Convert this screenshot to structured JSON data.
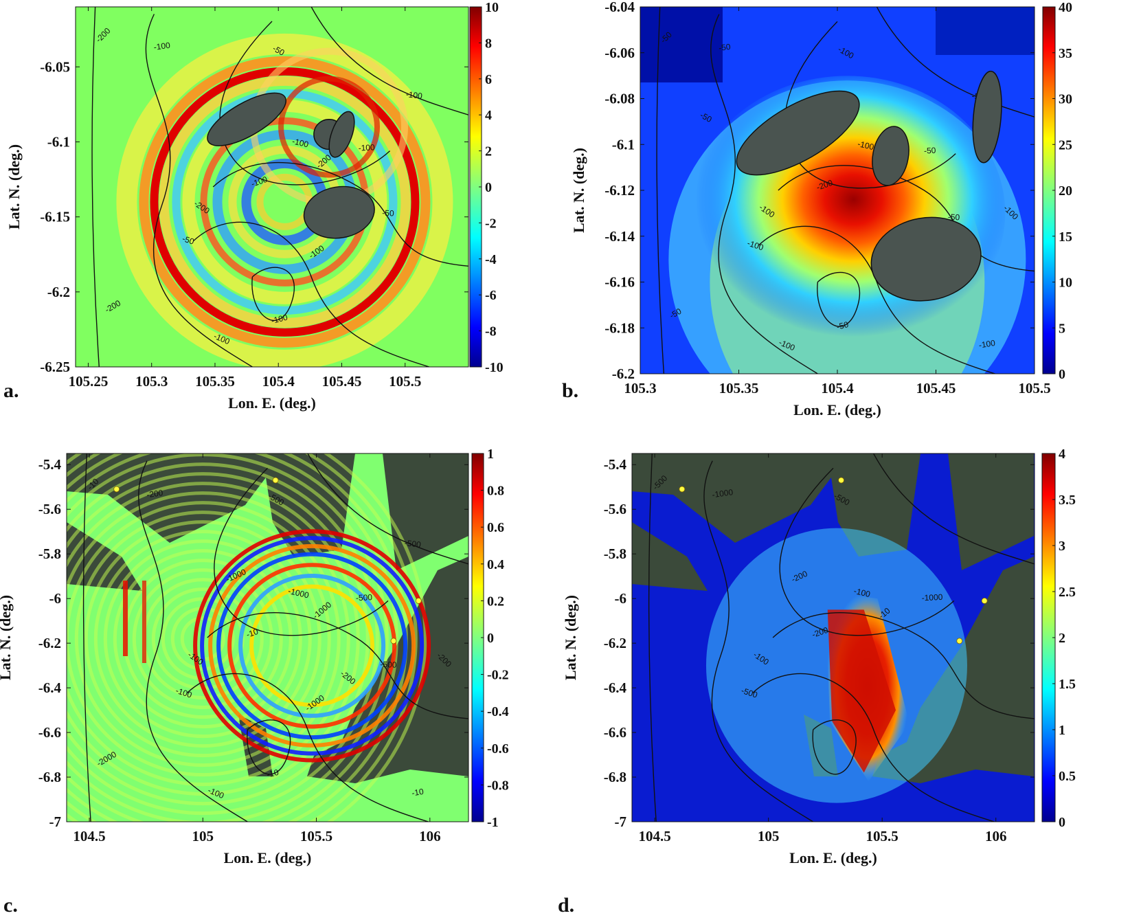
{
  "chart_data": [
    {
      "panel_label": "a.",
      "type": "heatmap",
      "xlabel": "Lon. E. (deg.)",
      "ylabel": "Lat. N. (deg.)",
      "xlim": [
        105.24,
        105.55
      ],
      "ylim": [
        -6.25,
        -6.01
      ],
      "xticks": [
        "105.25",
        "105.3",
        "105.35",
        "105.4",
        "105.45",
        "105.5"
      ],
      "yticks": [
        "-6.05",
        "-6.1",
        "-6.15",
        "-6.2",
        "-6.25"
      ],
      "colorbar": {
        "min": -10,
        "max": 10,
        "ticks": [
          "10",
          "8",
          "6",
          "4",
          "2",
          "0",
          "-2",
          "-4",
          "-6",
          "-8",
          "-10"
        ]
      },
      "contour_labels": [
        "-200",
        "-100",
        "-50",
        "-100",
        "-100",
        "-200",
        "-100",
        "-200",
        "-100",
        "-50",
        "-100",
        "-50",
        "-50",
        "-100",
        "-100",
        "-200",
        "-100"
      ],
      "islands": [
        {
          "cx": 105.375,
          "cy": -6.085,
          "rx": 0.035,
          "ry": 0.011,
          "rot": -30
        },
        {
          "cx": 105.44,
          "cy": -6.095,
          "rx": 0.012,
          "ry": 0.01,
          "rot": 0
        },
        {
          "cx": 105.45,
          "cy": -6.095,
          "rx": 0.008,
          "ry": 0.016,
          "rot": 20
        },
        {
          "cx": 105.448,
          "cy": -6.147,
          "rx": 0.028,
          "ry": 0.017,
          "rot": -10
        }
      ]
    },
    {
      "panel_label": "b.",
      "type": "heatmap",
      "xlabel": "Lon. E. (deg.)",
      "ylabel": "Lat. N. (deg.)",
      "xlim": [
        105.3,
        105.5
      ],
      "ylim": [
        -6.2,
        -6.04
      ],
      "xticks": [
        "105.3",
        "105.35",
        "105.4",
        "105.45",
        "105.5"
      ],
      "yticks": [
        "-6.04",
        "-6.06",
        "-6.08",
        "-6.1",
        "-6.12",
        "-6.14",
        "-6.16",
        "-6.18",
        "-6.2"
      ],
      "colorbar": {
        "min": 0,
        "max": 40,
        "ticks": [
          "40",
          "35",
          "30",
          "25",
          "20",
          "15",
          "10",
          "5",
          "0"
        ]
      },
      "contour_labels": [
        "-50",
        "-50",
        "-100",
        "-50",
        "-100",
        "-50",
        "-50",
        "-100",
        "-200",
        "-100",
        "-200",
        "-50",
        "-100",
        "-50",
        "-100",
        "-50",
        "-50",
        "-100",
        "-100",
        "-50"
      ],
      "islands": [
        {
          "cx": 105.38,
          "cy": -6.095,
          "rx": 0.035,
          "ry": 0.012,
          "rot": -30
        },
        {
          "cx": 105.427,
          "cy": -6.105,
          "rx": 0.009,
          "ry": 0.013,
          "rot": 10
        },
        {
          "cx": 105.476,
          "cy": -6.088,
          "rx": 0.007,
          "ry": 0.02,
          "rot": 5
        },
        {
          "cx": 105.445,
          "cy": -6.15,
          "rx": 0.028,
          "ry": 0.018,
          "rot": -10
        }
      ]
    },
    {
      "panel_label": "c.",
      "type": "heatmap",
      "xlabel": "Lon. E. (deg.)",
      "ylabel": "Lat. N. (deg.)",
      "xlim": [
        104.4,
        106.17
      ],
      "ylim": [
        -7.0,
        -5.35
      ],
      "xticks": [
        "104.5",
        "105",
        "105.5",
        "106"
      ],
      "yticks": [
        "-5.4",
        "-5.6",
        "-5.8",
        "-6",
        "-6.2",
        "-6.4",
        "-6.6",
        "-6.8",
        "-7"
      ],
      "colorbar": {
        "min": -1,
        "max": 1,
        "ticks": [
          "1",
          "0.8",
          "0.6",
          "0.4",
          "0.2",
          "0",
          "-0.2",
          "-0.4",
          "-0.6",
          "-0.8",
          "-1"
        ]
      },
      "contour_labels": [
        "-10",
        "-200",
        "-500",
        "-1000",
        "-1000",
        "-1000",
        "-500",
        "-100",
        "-10",
        "-100",
        "-1000",
        "-500",
        "-200",
        "-10",
        "-100",
        "-2000",
        "-500",
        "-200",
        "-10"
      ],
      "stations": [
        {
          "lon": 104.62,
          "lat": -5.51
        },
        {
          "lon": 105.32,
          "lat": -5.47
        },
        {
          "lon": 105.95,
          "lat": -6.01
        },
        {
          "lon": 105.84,
          "lat": -6.19
        }
      ]
    },
    {
      "panel_label": "d.",
      "type": "heatmap",
      "xlabel": "Lon. E. (deg.)",
      "ylabel": "Lat. N. (deg.)",
      "xlim": [
        104.4,
        106.17
      ],
      "ylim": [
        -7.0,
        -5.35
      ],
      "xticks": [
        "104.5",
        "105",
        "105.5",
        "106"
      ],
      "yticks": [
        "-5.4",
        "-5.6",
        "-5.8",
        "-6",
        "-6.2",
        "-6.4",
        "-6.6",
        "-6.8",
        "-7"
      ],
      "colorbar": {
        "min": 0,
        "max": 4,
        "ticks": [
          "4",
          "3.5",
          "3",
          "2.5",
          "2",
          "1.5",
          "1",
          "0.5",
          "0"
        ]
      },
      "contour_labels": [
        "-500",
        "-1000",
        "-500",
        "-200",
        "-100",
        "-10",
        "-1000",
        "-100",
        "-200",
        "-500"
      ],
      "stations": [
        {
          "lon": 104.62,
          "lat": -5.51
        },
        {
          "lon": 105.32,
          "lat": -5.47
        },
        {
          "lon": 105.95,
          "lat": -6.01
        },
        {
          "lon": 105.84,
          "lat": -6.19
        }
      ]
    }
  ]
}
